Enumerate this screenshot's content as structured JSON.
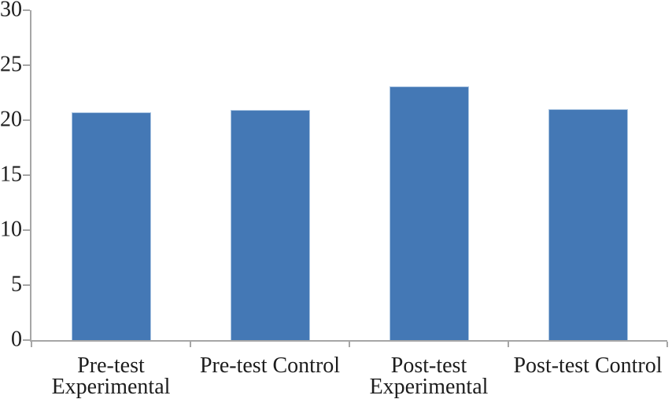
{
  "chart_data": {
    "type": "bar",
    "title": "",
    "xlabel": "",
    "ylabel": "",
    "categories": [
      "Pre-test Experimental",
      "Pre-test Control",
      "Post-test Experimental",
      "Post-test Control"
    ],
    "category_label_lines": [
      [
        "Pre-test",
        "Experimental"
      ],
      [
        "Pre-test Control"
      ],
      [
        "Post-test",
        "Experimental"
      ],
      [
        "Post-test Control"
      ]
    ],
    "values": [
      20.7,
      20.9,
      23.1,
      21.0
    ],
    "ylim": [
      0,
      30
    ],
    "ytick_step": 5,
    "ytick_labels": [
      "0",
      "5",
      "10",
      "15",
      "20",
      "25",
      "30"
    ],
    "grid": "off",
    "legend": "none",
    "bar_color": "#4478b5",
    "bar_edge_color": "#a9c4e1",
    "axis_color": "#a6a6a6",
    "text_color": "#1d1d1d"
  }
}
